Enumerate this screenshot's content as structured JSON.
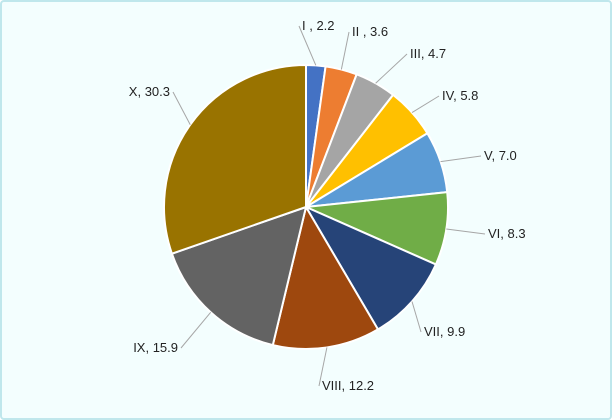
{
  "chart_data": {
    "type": "pie",
    "title": "",
    "slices": [
      {
        "label": "I",
        "value": 2.2,
        "display": "I , 2.2",
        "color": "#4472c4"
      },
      {
        "label": "II",
        "value": 3.6,
        "display": "II , 3.6",
        "color": "#ed7d31"
      },
      {
        "label": "III",
        "value": 4.7,
        "display": "III, 4.7",
        "color": "#a5a5a5"
      },
      {
        "label": "IV",
        "value": 5.8,
        "display": "IV, 5.8",
        "color": "#ffc000"
      },
      {
        "label": "V",
        "value": 7.0,
        "display": "V, 7.0",
        "color": "#5b9bd5"
      },
      {
        "label": "VI",
        "value": 8.3,
        "display": "VI, 8.3",
        "color": "#70ad47"
      },
      {
        "label": "VII",
        "value": 9.9,
        "display": "VII, 9.9",
        "color": "#264478"
      },
      {
        "label": "VIII",
        "value": 12.2,
        "display": "VIII, 12.2",
        "color": "#9e480e"
      },
      {
        "label": "IX",
        "value": 15.9,
        "display": "IX, 15.9",
        "color": "#636363"
      },
      {
        "label": "X",
        "value": 30.3,
        "display": "X, 30.3",
        "color": "#997300"
      }
    ],
    "legend": "none",
    "data_labels": "outside-with-leader-lines"
  }
}
